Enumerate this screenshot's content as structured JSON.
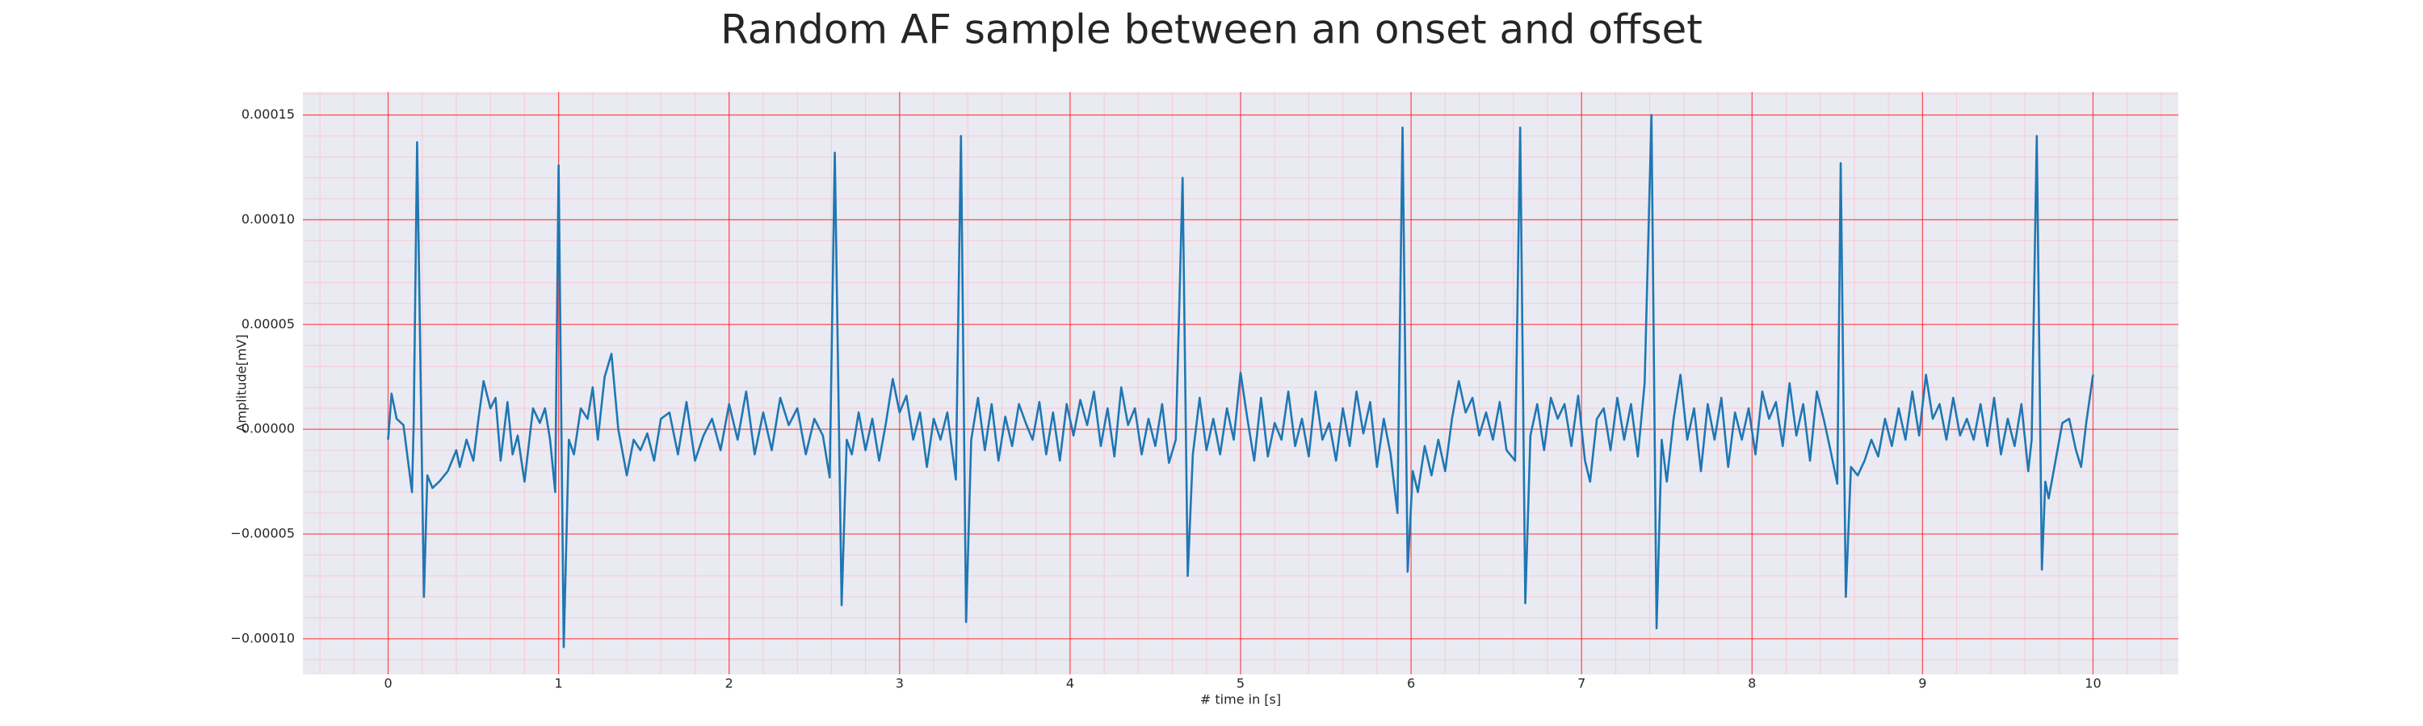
{
  "chart_data": {
    "type": "line",
    "title": "Random AF sample between an onset and offset",
    "xlabel": "# time in [s]",
    "ylabel": "Amplitude[mV]",
    "color": "#1f77b4",
    "background": "#eaeaf2",
    "grid": true,
    "grid_color": "#ff0000",
    "minor_grid": true,
    "minor_grid_color": "#ffb6c1",
    "xlim": [
      -0.5,
      10.5
    ],
    "ylim": [
      -0.000117,
      0.000161
    ],
    "xticks": [
      0,
      1,
      2,
      3,
      4,
      5,
      6,
      7,
      8,
      9,
      10
    ],
    "yticks": [
      {
        "value": -0.0001,
        "label": "−0.00010"
      },
      {
        "value": -5e-05,
        "label": "−0.00005"
      },
      {
        "value": 0,
        "label": "0.00000"
      },
      {
        "value": 5e-05,
        "label": "0.00005"
      },
      {
        "value": 0.0001,
        "label": "0.00010"
      },
      {
        "value": 0.00015,
        "label": "0.00015"
      }
    ],
    "x": [
      0,
      0.02,
      0.05,
      0.09,
      0.14,
      0.15,
      0.17,
      0.21,
      0.23,
      0.26,
      0.3,
      0.35,
      0.4,
      0.42,
      0.46,
      0.5,
      0.53,
      0.56,
      0.6,
      0.63,
      0.66,
      0.7,
      0.73,
      0.76,
      0.8,
      0.85,
      0.89,
      0.92,
      0.95,
      0.98,
      1.0,
      1.03,
      1.06,
      1.09,
      1.13,
      1.17,
      1.2,
      1.23,
      1.27,
      1.31,
      1.35,
      1.4,
      1.44,
      1.48,
      1.52,
      1.56,
      1.6,
      1.65,
      1.7,
      1.75,
      1.8,
      1.85,
      1.9,
      1.95,
      2.0,
      2.05,
      2.1,
      2.15,
      2.2,
      2.25,
      2.3,
      2.35,
      2.4,
      2.45,
      2.5,
      2.55,
      2.59,
      2.62,
      2.66,
      2.69,
      2.72,
      2.76,
      2.8,
      2.84,
      2.88,
      2.92,
      2.96,
      3.0,
      3.04,
      3.08,
      3.12,
      3.16,
      3.2,
      3.24,
      3.28,
      3.33,
      3.36,
      3.39,
      3.42,
      3.46,
      3.5,
      3.54,
      3.58,
      3.62,
      3.66,
      3.7,
      3.74,
      3.78,
      3.82,
      3.86,
      3.9,
      3.94,
      3.98,
      4.02,
      4.06,
      4.1,
      4.14,
      4.18,
      4.22,
      4.26,
      4.3,
      4.34,
      4.38,
      4.42,
      4.46,
      4.5,
      4.54,
      4.58,
      4.62,
      4.66,
      4.69,
      4.72,
      4.76,
      4.8,
      4.84,
      4.88,
      4.92,
      4.96,
      5.0,
      5.04,
      5.08,
      5.12,
      5.16,
      5.2,
      5.24,
      5.28,
      5.32,
      5.36,
      5.4,
      5.44,
      5.48,
      5.52,
      5.56,
      5.6,
      5.64,
      5.68,
      5.72,
      5.76,
      5.8,
      5.84,
      5.88,
      5.92,
      5.95,
      5.98,
      6.01,
      6.04,
      6.08,
      6.12,
      6.16,
      6.2,
      6.24,
      6.28,
      6.32,
      6.36,
      6.4,
      6.44,
      6.48,
      6.52,
      6.56,
      6.61,
      6.64,
      6.67,
      6.7,
      6.74,
      6.78,
      6.82,
      6.86,
      6.9,
      6.94,
      6.98,
      7.02,
      7.05,
      7.09,
      7.13,
      7.17,
      7.21,
      7.25,
      7.29,
      7.33,
      7.37,
      7.41,
      7.44,
      7.47,
      7.5,
      7.54,
      7.58,
      7.62,
      7.66,
      7.7,
      7.74,
      7.78,
      7.82,
      7.86,
      7.9,
      7.94,
      7.98,
      8.02,
      8.06,
      8.1,
      8.14,
      8.18,
      8.22,
      8.26,
      8.3,
      8.34,
      8.38,
      8.42,
      8.46,
      8.5,
      8.52,
      8.55,
      8.58,
      8.62,
      8.66,
      8.7,
      8.74,
      8.78,
      8.82,
      8.86,
      8.9,
      8.94,
      8.98,
      9.02,
      9.06,
      9.1,
      9.14,
      9.18,
      9.22,
      9.26,
      9.3,
      9.34,
      9.38,
      9.42,
      9.46,
      9.5,
      9.54,
      9.58,
      9.62,
      9.64,
      9.67,
      9.7,
      9.72,
      9.74,
      9.78,
      9.82,
      9.86,
      9.9,
      9.93,
      9.96,
      10.0
    ],
    "values": [
      -5e-06,
      1.7e-05,
      5e-06,
      2e-06,
      -3e-05,
      3e-06,
      0.000137,
      -8e-05,
      -2.2e-05,
      -2.8e-05,
      -2.5e-05,
      -2e-05,
      -1e-05,
      -1.8e-05,
      -5e-06,
      -1.5e-05,
      5e-06,
      2.3e-05,
      1e-05,
      1.5e-05,
      -1.5e-05,
      1.3e-05,
      -1.2e-05,
      -3e-06,
      -2.5e-05,
      1e-05,
      3e-06,
      1e-05,
      -5e-06,
      -3e-05,
      0.000126,
      -0.000104,
      -5e-06,
      -1.2e-05,
      1e-05,
      5e-06,
      2e-05,
      -5e-06,
      2.5e-05,
      3.6e-05,
      0,
      -2.2e-05,
      -5e-06,
      -1e-05,
      -2e-06,
      -1.5e-05,
      5e-06,
      8e-06,
      -1.2e-05,
      1.3e-05,
      -1.5e-05,
      -3e-06,
      5e-06,
      -1e-05,
      1.2e-05,
      -5e-06,
      1.8e-05,
      -1.2e-05,
      8e-06,
      -1e-05,
      1.5e-05,
      2e-06,
      1e-05,
      -1.2e-05,
      5e-06,
      -3e-06,
      -2.3e-05,
      0.000132,
      -8.4e-05,
      -5e-06,
      -1.2e-05,
      8e-06,
      -1e-05,
      5e-06,
      -1.5e-05,
      3e-06,
      2.4e-05,
      8e-06,
      1.6e-05,
      -5e-06,
      8e-06,
      -1.8e-05,
      5e-06,
      -5e-06,
      8e-06,
      -2.4e-05,
      0.00014,
      -9.2e-05,
      -5e-06,
      1.5e-05,
      -1e-05,
      1.2e-05,
      -1.5e-05,
      6e-06,
      -8e-06,
      1.2e-05,
      3e-06,
      -5e-06,
      1.3e-05,
      -1.2e-05,
      8e-06,
      -1.5e-05,
      1.2e-05,
      -3e-06,
      1.4e-05,
      2e-06,
      1.8e-05,
      -8e-06,
      1e-05,
      -1.3e-05,
      2e-05,
      2e-06,
      1e-05,
      -1.2e-05,
      5e-06,
      -8e-06,
      1.2e-05,
      -1.6e-05,
      -5e-06,
      0.00012,
      -7e-05,
      -1.2e-05,
      1.5e-05,
      -1e-05,
      5e-06,
      -1.2e-05,
      1e-05,
      -5e-06,
      2.7e-05,
      5e-06,
      -1.5e-05,
      1.5e-05,
      -1.3e-05,
      3e-06,
      -5e-06,
      1.8e-05,
      -8e-06,
      5e-06,
      -1.3e-05,
      1.8e-05,
      -5e-06,
      3e-06,
      -1.5e-05,
      1e-05,
      -8e-06,
      1.8e-05,
      -2e-06,
      1.3e-05,
      -1.8e-05,
      5e-06,
      -1.2e-05,
      -4e-05,
      0.000144,
      -6.8e-05,
      -2e-05,
      -3e-05,
      -8e-06,
      -2.2e-05,
      -5e-06,
      -2e-05,
      5e-06,
      2.3e-05,
      8e-06,
      1.5e-05,
      -3e-06,
      8e-06,
      -5e-06,
      1.3e-05,
      -1e-05,
      -1.5e-05,
      0.000144,
      -8.3e-05,
      -3e-06,
      1.2e-05,
      -1e-05,
      1.5e-05,
      5e-06,
      1.2e-05,
      -8e-06,
      1.6e-05,
      -1.5e-05,
      -2.5e-05,
      5e-06,
      1e-05,
      -1e-05,
      1.5e-05,
      -5e-06,
      1.2e-05,
      -1.3e-05,
      2.2e-05,
      0.00015,
      -9.5e-05,
      -5e-06,
      -2.5e-05,
      5e-06,
      2.6e-05,
      -5e-06,
      1e-05,
      -2e-05,
      1.2e-05,
      -5e-06,
      1.5e-05,
      -1.8e-05,
      8e-06,
      -5e-06,
      1e-05,
      -1.2e-05,
      1.8e-05,
      5e-06,
      1.3e-05,
      -8e-06,
      2.2e-05,
      -3e-06,
      1.2e-05,
      -1.5e-05,
      1.8e-05,
      5e-06,
      -1e-05,
      -2.6e-05,
      0.000127,
      -8e-05,
      -1.8e-05,
      -2.2e-05,
      -1.5e-05,
      -5e-06,
      -1.3e-05,
      5e-06,
      -8e-06,
      1e-05,
      -5e-06,
      1.8e-05,
      -3e-06,
      2.6e-05,
      5e-06,
      1.2e-05,
      -5e-06,
      1.5e-05,
      -3e-06,
      5e-06,
      -5e-06,
      1.2e-05,
      -8e-06,
      1.5e-05,
      -1.2e-05,
      5e-06,
      -8e-06,
      1.2e-05,
      -2e-05,
      -5e-06,
      0.00014,
      -6.7e-05,
      -2.5e-05,
      -3.3e-05,
      -1.5e-05,
      3e-06,
      5e-06,
      -1e-05,
      -1.8e-05,
      3e-06,
      2.6e-05
    ]
  }
}
